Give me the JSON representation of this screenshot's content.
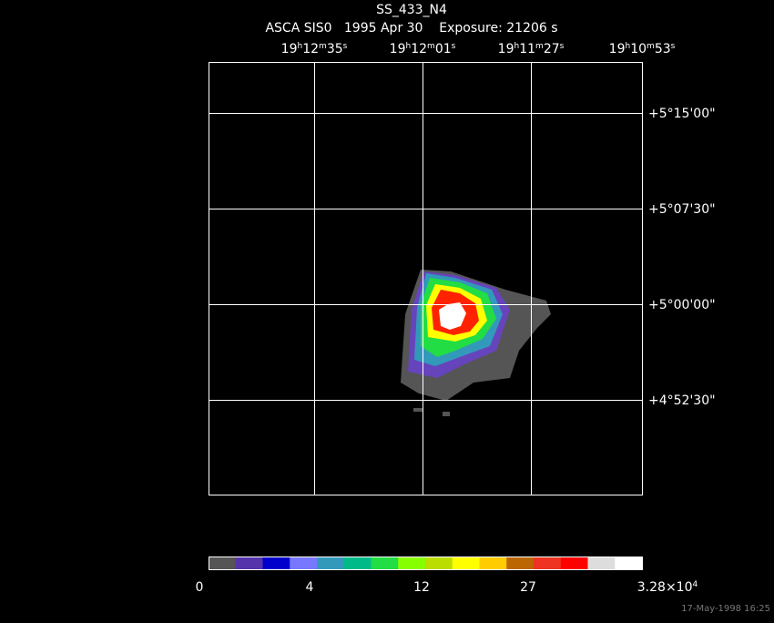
{
  "header": {
    "title": "SS_433_N4",
    "subtitle": "ASCA SIS0   1995 Apr 30    Exposure: 21206 s"
  },
  "ra_labels": [
    [
      "19",
      "h",
      "12",
      "m",
      "35",
      "s"
    ],
    [
      "19",
      "h",
      "12",
      "m",
      "01",
      "s"
    ],
    [
      "19",
      "h",
      "11",
      "m",
      "27",
      "s"
    ],
    [
      "19",
      "h",
      "10",
      "m",
      "53",
      "s"
    ]
  ],
  "dec_labels": [
    "+5°15'00\"",
    "+5°07'30\"",
    "+5°00'00\"",
    "+4°52'30\""
  ],
  "colorbar_labels": [
    [
      "0"
    ],
    [
      "4"
    ],
    [
      "12"
    ],
    [
      "27"
    ],
    [
      "3.28×10",
      "4"
    ]
  ],
  "footer": "17-May-1998 16:25"
}
